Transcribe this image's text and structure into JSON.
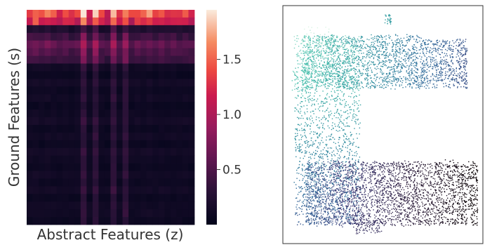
{
  "chart_data": [
    {
      "type": "heatmap",
      "xlabel": "Abstract Features (z)",
      "ylabel": "Ground Features (s)",
      "rows": 28,
      "cols": 28,
      "colorbar": {
        "min": 0.0,
        "max": 1.95,
        "ticks": [
          {
            "value": 0.5,
            "label": "0.5"
          },
          {
            "value": 1.0,
            "label": "1.0"
          },
          {
            "value": 1.5,
            "label": "1.5"
          }
        ],
        "colormap": "rocket"
      },
      "row_levels": [
        1.2,
        1.0,
        0.15,
        0.35,
        0.55,
        0.45,
        0.35,
        0.1,
        0.05,
        0.12,
        0.06,
        0.1,
        0.05,
        0.08,
        0.12,
        0.06,
        0.1,
        0.05,
        0.12,
        0.08,
        0.06,
        0.1,
        0.07,
        0.12,
        0.05,
        0.09,
        0.1,
        0.06
      ],
      "col_levels": [
        0.9,
        1.2,
        0.8,
        1.1,
        0.7,
        0.6,
        0.8,
        0.5,
        0.7,
        1.6,
        0.6,
        1.5,
        0.5,
        0.4,
        1.4,
        0.6,
        1.2,
        0.5,
        0.8,
        0.7,
        1.1,
        0.6,
        0.9,
        0.5,
        0.7,
        0.6,
        0.8,
        0.6
      ],
      "highlight_cols": [
        9,
        11,
        14,
        16
      ]
    },
    {
      "type": "scatter",
      "xlabel": "",
      "ylabel": "",
      "point_count": 6500,
      "colormap": "mako",
      "color_order": "progression along the C-shaped path from top-left to bottom-right",
      "shape": "C-shaped point cloud: top arm, left vertical spine, bottom arm",
      "axes_ticks": "none",
      "frame": true
    }
  ]
}
